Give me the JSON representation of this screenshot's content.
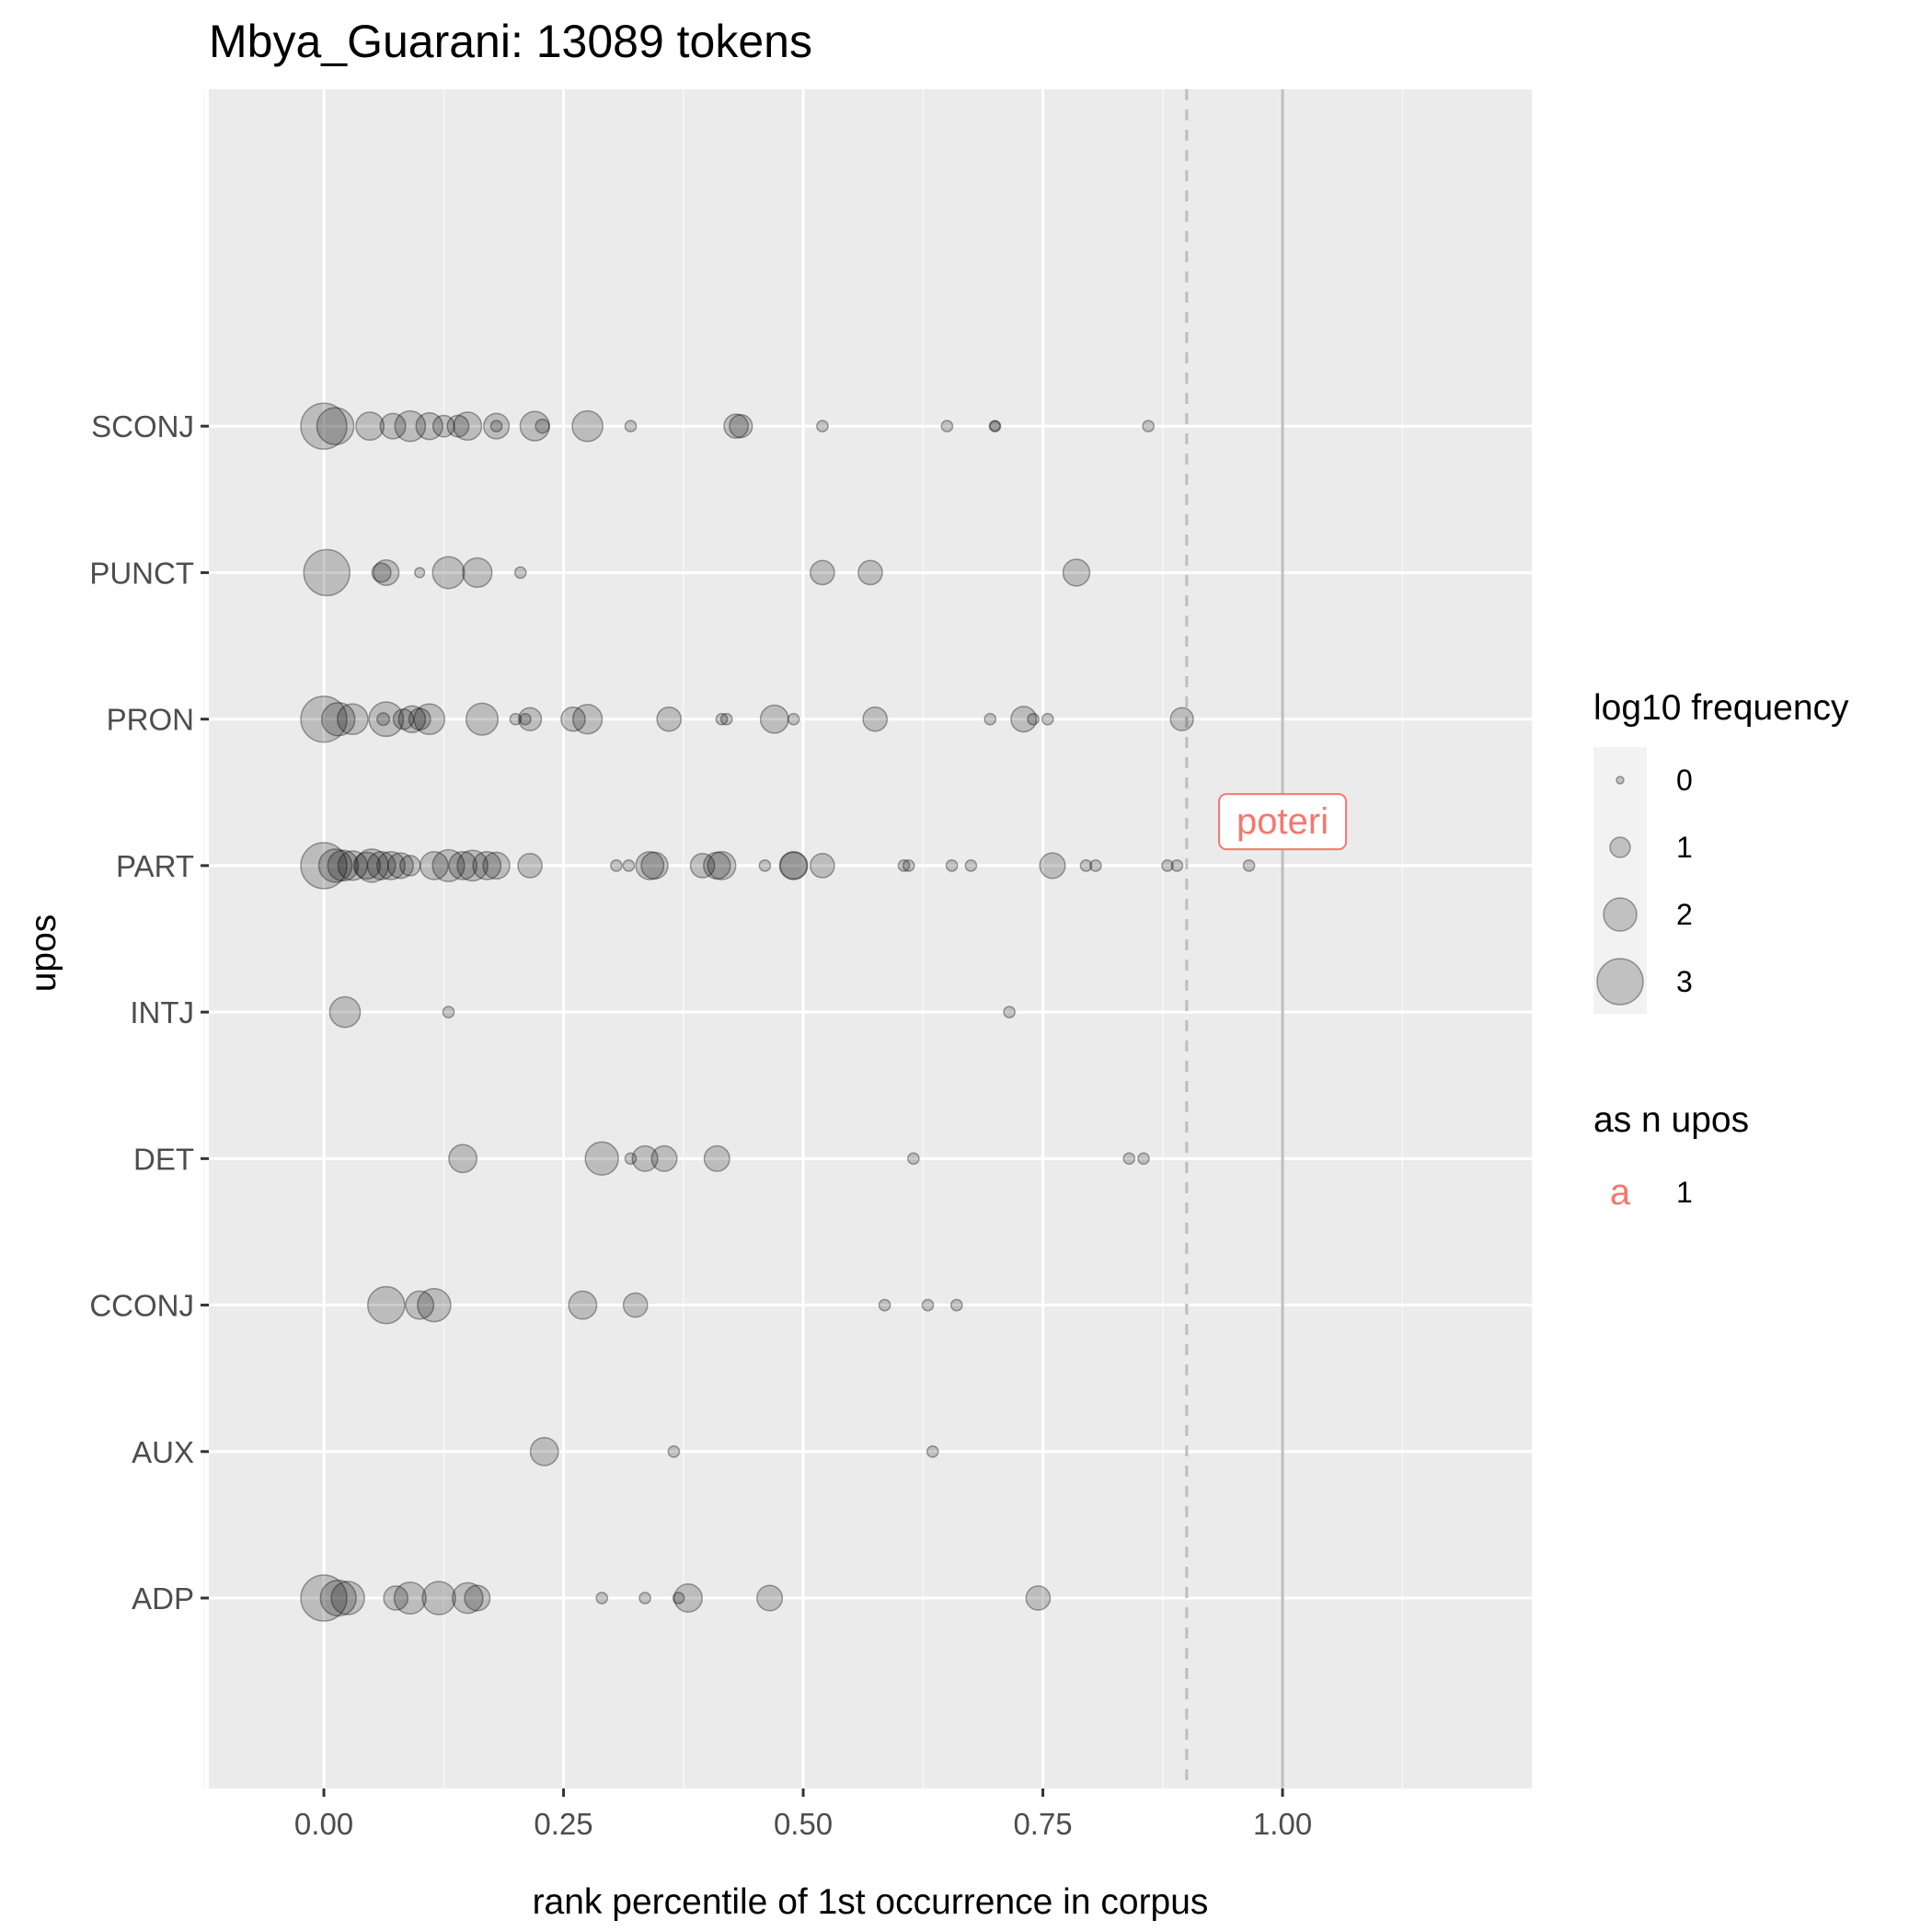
{
  "chart_data": {
    "type": "scatter",
    "title": "Mbya_Guarani: 13089 tokens",
    "xlabel": "rank percentile of 1st occurrence in corpus",
    "ylabel": "upos",
    "xlim": [
      -0.12,
      1.26
    ],
    "x_ticks": [
      0.0,
      0.25,
      0.5,
      0.75,
      1.0
    ],
    "x_tick_labels": [
      "0.00",
      "0.25",
      "0.50",
      "0.75",
      "1.00"
    ],
    "categories": [
      "ADP",
      "AUX",
      "CCONJ",
      "DET",
      "INTJ",
      "PART",
      "PRON",
      "PUNCT",
      "SCONJ"
    ],
    "grid": true,
    "reference_lines": [
      {
        "x": 0.9,
        "style": "dashed"
      },
      {
        "x": 1.0,
        "style": "solid"
      }
    ],
    "point_color": "#000000",
    "point_alpha": 0.2,
    "highlight_color": "#F8766D",
    "annotations": [
      {
        "label": "poteri",
        "x": 1.0,
        "y": "PART",
        "y_offset": 0.3
      }
    ],
    "series": [
      {
        "upos": "SCONJ",
        "points": [
          [
            0.0,
            3.0
          ],
          [
            0.012,
            2.3
          ],
          [
            0.048,
            1.6
          ],
          [
            0.072,
            1.4
          ],
          [
            0.09,
            1.8
          ],
          [
            0.11,
            1.5
          ],
          [
            0.125,
            1.1
          ],
          [
            0.14,
            1.1
          ],
          [
            0.15,
            1.6
          ],
          [
            0.18,
            1.4
          ],
          [
            0.18,
            0.3
          ],
          [
            0.22,
            1.7
          ],
          [
            0.228,
            0.5
          ],
          [
            0.275,
            1.8
          ],
          [
            0.32,
            0.3
          ],
          [
            0.43,
            1.3
          ],
          [
            0.435,
            1.2
          ],
          [
            0.52,
            0.3
          ],
          [
            0.65,
            0.3
          ],
          [
            0.7,
            0.3
          ],
          [
            0.7,
            0.2
          ],
          [
            0.86,
            0.3
          ]
        ]
      },
      {
        "upos": "PUNCT",
        "points": [
          [
            0.003,
            3.0
          ],
          [
            0.06,
            0.9
          ],
          [
            0.065,
            1.4
          ],
          [
            0.1,
            0.2
          ],
          [
            0.13,
            1.9
          ],
          [
            0.16,
            1.7
          ],
          [
            0.205,
            0.3
          ],
          [
            0.52,
            1.3
          ],
          [
            0.57,
            1.3
          ],
          [
            0.785,
            1.5
          ]
        ]
      },
      {
        "upos": "PRON",
        "points": [
          [
            0.0,
            3.0
          ],
          [
            0.015,
            2.0
          ],
          [
            0.03,
            1.8
          ],
          [
            0.062,
            0.4
          ],
          [
            0.065,
            2.1
          ],
          [
            0.083,
            1.0
          ],
          [
            0.092,
            1.5
          ],
          [
            0.1,
            1.1
          ],
          [
            0.11,
            1.8
          ],
          [
            0.165,
            1.9
          ],
          [
            0.2,
            0.3
          ],
          [
            0.21,
            0.3
          ],
          [
            0.215,
            1.2
          ],
          [
            0.26,
            1.3
          ],
          [
            0.275,
            1.7
          ],
          [
            0.36,
            1.3
          ],
          [
            0.415,
            0.3
          ],
          [
            0.42,
            0.3
          ],
          [
            0.47,
            1.6
          ],
          [
            0.49,
            0.3
          ],
          [
            0.575,
            1.3
          ],
          [
            0.695,
            0.3
          ],
          [
            0.73,
            1.4
          ],
          [
            0.74,
            0.3
          ],
          [
            0.755,
            0.3
          ],
          [
            0.895,
            1.2
          ]
        ]
      },
      {
        "upos": "PART",
        "points": [
          [
            0.0,
            3.0
          ],
          [
            0.012,
            2.0
          ],
          [
            0.02,
            1.8
          ],
          [
            0.03,
            1.7
          ],
          [
            0.045,
            1.5
          ],
          [
            0.05,
            2.0
          ],
          [
            0.06,
            1.6
          ],
          [
            0.07,
            1.6
          ],
          [
            0.08,
            1.4
          ],
          [
            0.09,
            1.0
          ],
          [
            0.115,
            1.6
          ],
          [
            0.13,
            1.9
          ],
          [
            0.145,
            1.6
          ],
          [
            0.155,
            1.8
          ],
          [
            0.17,
            1.6
          ],
          [
            0.18,
            1.5
          ],
          [
            0.215,
            1.3
          ],
          [
            0.305,
            0.3
          ],
          [
            0.318,
            0.3
          ],
          [
            0.34,
            1.6
          ],
          [
            0.345,
            1.5
          ],
          [
            0.395,
            1.3
          ],
          [
            0.41,
            1.5
          ],
          [
            0.415,
            1.6
          ],
          [
            0.46,
            0.3
          ],
          [
            0.49,
            1.6
          ],
          [
            0.49,
            1.5
          ],
          [
            0.52,
            1.3
          ],
          [
            0.605,
            0.3
          ],
          [
            0.61,
            0.3
          ],
          [
            0.655,
            0.3
          ],
          [
            0.675,
            0.3
          ],
          [
            0.76,
            1.4
          ],
          [
            0.795,
            0.3
          ],
          [
            0.805,
            0.3
          ],
          [
            0.88,
            0.3
          ],
          [
            0.89,
            0.3
          ],
          [
            0.965,
            0.3
          ]
        ]
      },
      {
        "upos": "INTJ",
        "points": [
          [
            0.022,
            1.8
          ],
          [
            0.13,
            0.3
          ],
          [
            0.715,
            0.3
          ]
        ]
      },
      {
        "upos": "DET",
        "points": [
          [
            0.145,
            1.6
          ],
          [
            0.29,
            2.0
          ],
          [
            0.32,
            0.3
          ],
          [
            0.335,
            1.4
          ],
          [
            0.355,
            1.4
          ],
          [
            0.41,
            1.4
          ],
          [
            0.615,
            0.3
          ],
          [
            0.84,
            0.3
          ],
          [
            0.855,
            0.3
          ]
        ]
      },
      {
        "upos": "CCONJ",
        "points": [
          [
            0.065,
            2.3
          ],
          [
            0.1,
            1.6
          ],
          [
            0.115,
            2.0
          ],
          [
            0.27,
            1.6
          ],
          [
            0.325,
            1.3
          ],
          [
            0.585,
            0.3
          ],
          [
            0.63,
            0.3
          ],
          [
            0.66,
            0.3
          ]
        ]
      },
      {
        "upos": "AUX",
        "points": [
          [
            0.23,
            1.6
          ],
          [
            0.365,
            0.3
          ],
          [
            0.635,
            0.3
          ]
        ]
      },
      {
        "upos": "ADP",
        "points": [
          [
            0.0,
            3.0
          ],
          [
            0.015,
            2.2
          ],
          [
            0.025,
            2.0
          ],
          [
            0.075,
            1.3
          ],
          [
            0.09,
            1.9
          ],
          [
            0.12,
            2.0
          ],
          [
            0.15,
            1.8
          ],
          [
            0.16,
            1.4
          ],
          [
            0.29,
            0.3
          ],
          [
            0.335,
            0.3
          ],
          [
            0.37,
            0.3
          ],
          [
            0.38,
            1.6
          ],
          [
            0.465,
            1.4
          ],
          [
            0.745,
            1.3
          ]
        ]
      }
    ],
    "legend": {
      "size_title": "log10 frequency",
      "size_items": [
        {
          "label": "0",
          "value": 0
        },
        {
          "label": "1",
          "value": 1
        },
        {
          "label": "2",
          "value": 2
        },
        {
          "label": "3",
          "value": 3
        }
      ],
      "color_title": "as n upos",
      "color_items": [
        {
          "key": "a",
          "label": "1"
        }
      ]
    }
  }
}
